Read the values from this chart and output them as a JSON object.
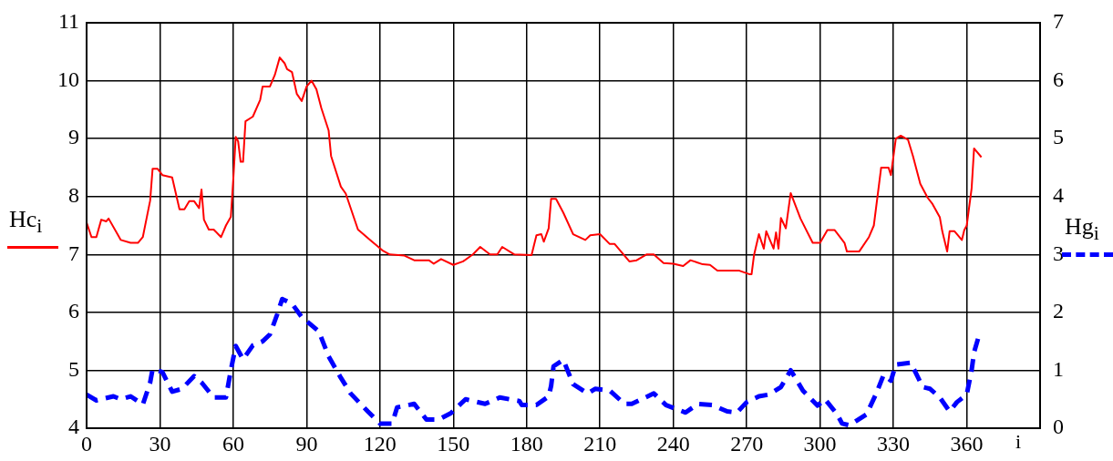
{
  "chart_data": {
    "type": "line",
    "xlabel": "i",
    "ylabel": "Hc$_{i}$",
    "y2label": "Hg$_{i}$",
    "xlim": [
      0,
      390
    ],
    "xticks": [
      0,
      30,
      60,
      90,
      120,
      150,
      180,
      210,
      240,
      270,
      300,
      330,
      360
    ],
    "ylim": [
      4,
      11
    ],
    "yticks": [
      4,
      5,
      6,
      7,
      8,
      9,
      10,
      11
    ],
    "y2lim": [
      0,
      7
    ],
    "y2ticks": [
      0,
      1,
      2,
      3,
      4,
      5,
      6,
      7
    ],
    "grid": true,
    "marker": "none",
    "series": [
      {
        "color": "#ff0000",
        "line_style": "solid",
        "x": [
          0,
          2,
          4,
          6,
          8,
          9,
          14,
          18,
          21,
          23,
          26,
          27,
          29,
          31,
          35,
          38,
          40,
          42,
          44,
          46,
          47,
          48,
          50,
          52,
          55,
          57,
          59,
          60,
          61,
          62,
          63,
          64,
          65,
          68,
          71,
          72,
          75,
          77,
          79,
          81,
          82,
          84,
          86,
          88,
          90,
          92,
          94,
          96,
          99,
          100,
          104,
          106,
          111,
          116,
          121,
          124,
          130,
          134,
          140,
          142,
          145,
          150,
          154,
          158,
          161,
          165,
          168,
          170,
          175,
          182,
          184,
          186,
          187,
          189,
          190,
          192,
          195,
          199,
          204,
          206,
          210,
          214,
          216,
          222,
          225,
          229,
          232,
          236,
          240,
          244,
          247,
          252,
          255,
          258,
          267,
          271,
          272,
          273,
          275,
          277,
          278,
          281,
          282,
          283,
          284,
          286,
          288,
          292,
          297,
          300,
          303,
          306,
          310,
          311,
          316,
          320,
          322,
          325,
          328,
          329,
          331,
          333,
          336,
          338,
          341,
          344,
          346,
          349,
          350,
          352,
          353,
          355,
          358,
          359,
          360,
          362,
          363,
          364,
          366
        ],
        "values": [
          7.55,
          7.3,
          7.3,
          7.6,
          7.57,
          7.62,
          7.25,
          7.2,
          7.2,
          7.3,
          7.93,
          8.48,
          8.48,
          8.37,
          8.33,
          7.78,
          7.78,
          7.92,
          7.92,
          7.8,
          8.12,
          7.6,
          7.43,
          7.43,
          7.3,
          7.5,
          7.65,
          8.3,
          9.03,
          8.95,
          8.6,
          8.6,
          9.3,
          9.38,
          9.67,
          9.9,
          9.9,
          10.1,
          10.4,
          10.3,
          10.2,
          10.15,
          9.77,
          9.65,
          9.9,
          10.0,
          9.85,
          9.53,
          9.14,
          8.7,
          8.17,
          8.05,
          7.43,
          7.25,
          7.07,
          7.0,
          6.98,
          6.9,
          6.9,
          6.84,
          6.92,
          6.82,
          6.88,
          7.0,
          7.13,
          7.0,
          7.0,
          7.13,
          7.0,
          6.99,
          7.33,
          7.35,
          7.22,
          7.45,
          7.96,
          7.96,
          7.72,
          7.35,
          7.25,
          7.33,
          7.35,
          7.18,
          7.18,
          6.88,
          6.9,
          7.0,
          7.0,
          6.85,
          6.84,
          6.8,
          6.9,
          6.83,
          6.82,
          6.72,
          6.72,
          6.66,
          6.66,
          6.99,
          7.35,
          7.1,
          7.4,
          7.1,
          7.38,
          7.1,
          7.63,
          7.45,
          8.06,
          7.62,
          7.2,
          7.2,
          7.42,
          7.42,
          7.2,
          7.05,
          7.05,
          7.3,
          7.5,
          8.5,
          8.5,
          8.37,
          9.0,
          9.05,
          8.98,
          8.7,
          8.22,
          7.98,
          7.87,
          7.64,
          7.4,
          7.05,
          7.4,
          7.4,
          7.25,
          7.42,
          7.5,
          8.14,
          8.83,
          8.78,
          8.68
        ]
      },
      {
        "color": "#0000ff",
        "line_style": "dashed",
        "axis": "y2",
        "x": [
          0,
          4,
          7,
          11,
          14,
          18,
          23,
          26,
          27,
          31,
          35,
          39,
          44,
          47,
          52,
          57,
          59,
          61,
          64,
          68,
          72,
          75,
          78,
          80,
          84,
          88,
          95,
          99,
          104,
          108,
          115,
          120,
          125,
          127,
          134,
          139,
          144,
          149,
          155,
          163,
          169,
          177,
          178,
          184,
          189,
          190,
          191,
          195,
          199,
          205,
          208,
          214,
          220,
          223,
          227,
          232,
          237,
          245,
          250,
          256,
          262,
          266,
          270,
          275,
          279,
          284,
          288,
          293,
          299,
          302,
          307,
          309,
          312,
          319,
          323,
          326,
          329,
          331,
          337,
          339,
          342,
          345,
          349,
          353,
          356,
          360,
          362,
          363,
          365
        ],
        "values": [
          0.58,
          0.48,
          0.51,
          0.55,
          0.5,
          0.55,
          0.41,
          0.79,
          1.02,
          0.97,
          0.63,
          0.68,
          0.9,
          0.79,
          0.53,
          0.53,
          1.0,
          1.42,
          1.19,
          1.43,
          1.5,
          1.62,
          1.97,
          2.23,
          2.15,
          1.92,
          1.67,
          1.24,
          0.87,
          0.6,
          0.29,
          0.08,
          0.08,
          0.36,
          0.42,
          0.15,
          0.15,
          0.26,
          0.5,
          0.42,
          0.53,
          0.47,
          0.4,
          0.4,
          0.55,
          0.73,
          1.07,
          1.18,
          0.76,
          0.6,
          0.68,
          0.65,
          0.42,
          0.42,
          0.5,
          0.6,
          0.4,
          0.27,
          0.42,
          0.4,
          0.29,
          0.27,
          0.45,
          0.55,
          0.58,
          0.71,
          1.0,
          0.65,
          0.39,
          0.5,
          0.24,
          0.08,
          0.05,
          0.24,
          0.6,
          0.92,
          0.82,
          1.1,
          1.13,
          0.97,
          0.71,
          0.68,
          0.53,
          0.29,
          0.45,
          0.58,
          1.0,
          1.31,
          1.6
        ]
      }
    ]
  }
}
